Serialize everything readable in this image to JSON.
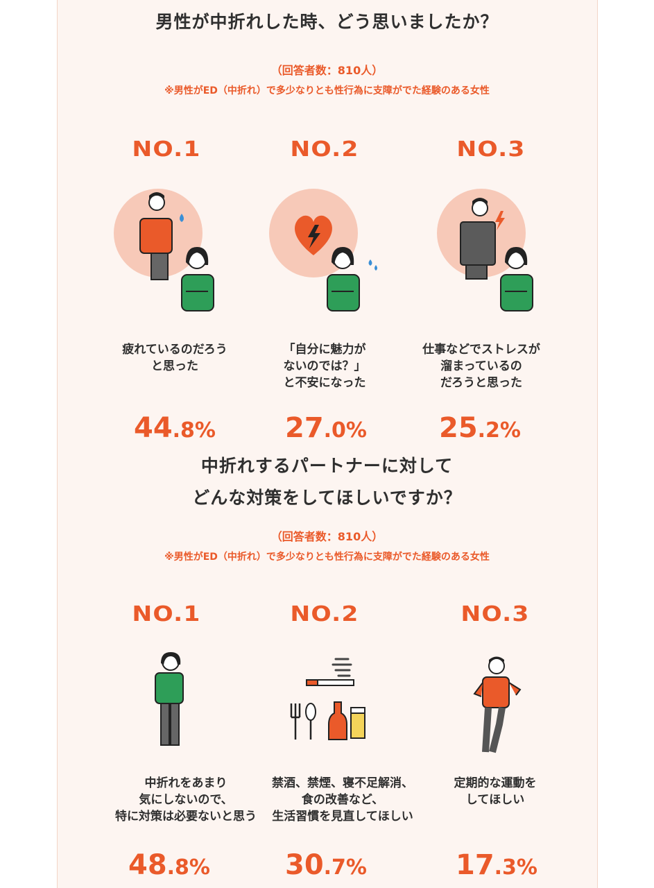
{
  "section1": {
    "title": "男性が中折れした時、どう思いましたか？",
    "respondents": "（回答者数：810人）",
    "condition": "※男性がED（中折れ）で多少なりとも性行為に支障がでた経験のある女性",
    "items": [
      {
        "rank": "NO.1",
        "text": "疲れているのだろう\nと思った",
        "pct_big": "44",
        "pct_small": ".8%"
      },
      {
        "rank": "NO.2",
        "text": "「自分に魅力が\nないのでは？」\nと不安になった",
        "pct_big": "27",
        "pct_small": ".0%"
      },
      {
        "rank": "NO.3",
        "text": "仕事などでストレスが\n溜まっているの\nだろうと思った",
        "pct_big": "25",
        "pct_small": ".2%"
      }
    ]
  },
  "section2": {
    "title_line1": "中折れするパートナーに対して",
    "title_line2": "どんな対策をしてほしいですか？",
    "respondents": "（回答者数：810人）",
    "condition": "※男性がED（中折れ）で多少なりとも性行為に支障がでた経験のある女性",
    "items": [
      {
        "rank": "NO.1",
        "text": "中折れをあまり\n気にしないので、\n特に対策は必要ないと思う",
        "pct_big": "48",
        "pct_small": ".8%"
      },
      {
        "rank": "NO.2",
        "text": "禁酒、禁煙、寝不足解消、\n食の改善など、\n生活習慣を見直してほしい",
        "pct_big": "30",
        "pct_small": ".7%"
      },
      {
        "rank": "NO.3",
        "text": "定期的な運動を\nしてほしい",
        "pct_big": "17",
        "pct_small": ".3%"
      }
    ]
  },
  "colors": {
    "accent": "#ea5a2a",
    "circle": "#f7c9b8",
    "green": "#2e9e58",
    "background": "#fdf5f1"
  }
}
